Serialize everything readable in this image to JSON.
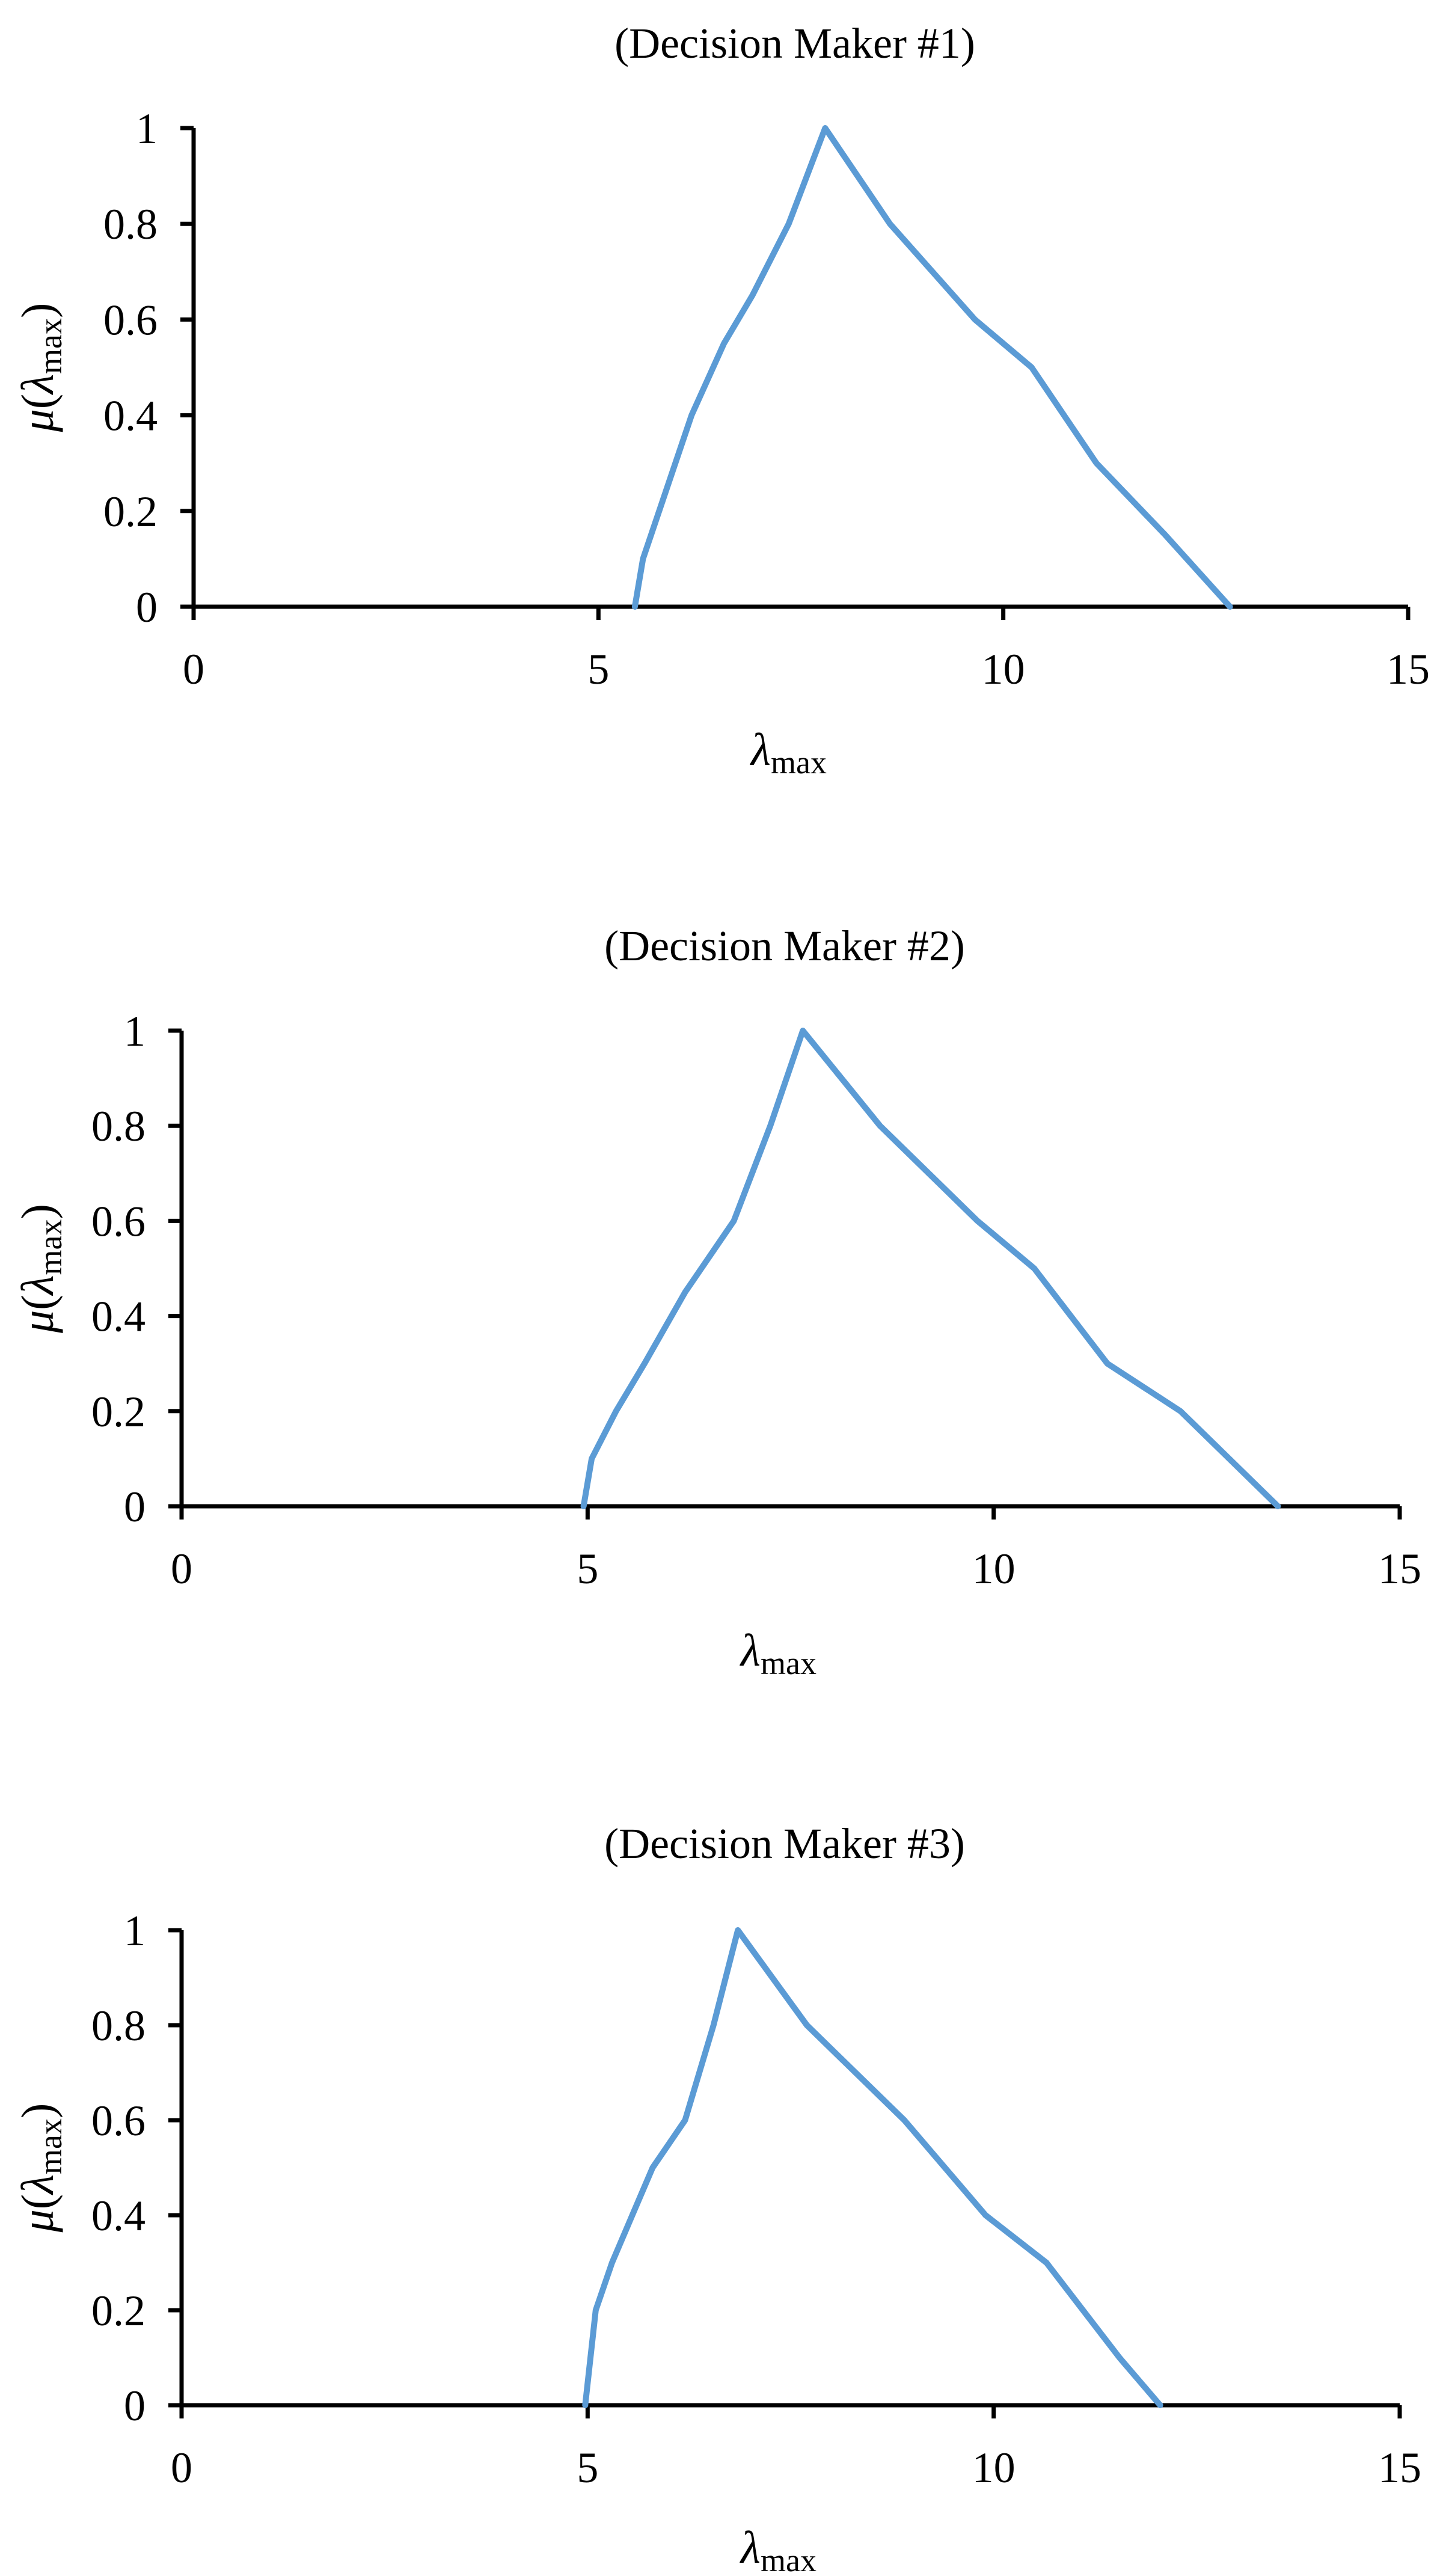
{
  "colors": {
    "series": "#5B9BD5",
    "axis": "#000000"
  },
  "chart_data": [
    {
      "type": "line",
      "title": "(Decision Maker #1)",
      "xlabel": "λmax",
      "ylabel": "μ(λmax)",
      "xlabel_parts": {
        "symbol": "λ",
        "sub": "max"
      },
      "ylabel_parts": {
        "mu": "μ",
        "open": "(",
        "symbol": "λ",
        "sub": "max",
        "close": ")"
      },
      "xlim": [
        0,
        15
      ],
      "ylim": [
        0,
        1
      ],
      "xticks": [
        "0",
        "5",
        "10",
        "15"
      ],
      "yticks": [
        "0",
        "0.2",
        "0.4",
        "0.6",
        "0.8",
        "1"
      ],
      "grid": false,
      "series": [
        {
          "x": [
            5.45,
            5.55,
            5.85,
            6.15,
            6.55,
            6.9,
            7.35,
            7.8,
            8.6,
            9.65,
            10.35,
            11.15,
            12.0,
            12.8
          ],
          "y": [
            0,
            0.1,
            0.25,
            0.4,
            0.55,
            0.65,
            0.8,
            1,
            0.8,
            0.6,
            0.5,
            0.3,
            0.15,
            0
          ]
        }
      ]
    },
    {
      "type": "line",
      "title": "(Decision Maker #2)",
      "xlabel": "λmax",
      "ylabel": "μ(λmax)",
      "xlabel_parts": {
        "symbol": "λ",
        "sub": "max"
      },
      "ylabel_parts": {
        "mu": "μ",
        "open": "(",
        "symbol": "λ",
        "sub": "max",
        "close": ")"
      },
      "xlim": [
        0,
        15
      ],
      "ylim": [
        0,
        1
      ],
      "xticks": [
        "0",
        "5",
        "10",
        "15"
      ],
      "yticks": [
        "0",
        "0.2",
        "0.4",
        "0.6",
        "0.8",
        "1"
      ],
      "grid": false,
      "series": [
        {
          "x": [
            4.95,
            5.05,
            5.35,
            5.7,
            6.2,
            6.8,
            7.25,
            7.65,
            8.6,
            9.8,
            10.5,
            11.4,
            12.3,
            12.9,
            13.5
          ],
          "y": [
            0,
            0.1,
            0.2,
            0.3,
            0.45,
            0.6,
            0.8,
            1,
            0.8,
            0.6,
            0.5,
            0.3,
            0.2,
            0.1,
            0
          ]
        }
      ]
    },
    {
      "type": "line",
      "title": "(Decision Maker #3)",
      "xlabel": "λmax",
      "ylabel": "μ(λmax)",
      "xlabel_parts": {
        "symbol": "λ",
        "sub": "max"
      },
      "ylabel_parts": {
        "mu": "μ",
        "open": "(",
        "symbol": "λ",
        "sub": "max",
        "close": ")"
      },
      "xlim": [
        0,
        15
      ],
      "ylim": [
        0,
        1
      ],
      "xticks": [
        "0",
        "5",
        "10",
        "15"
      ],
      "yticks": [
        "0",
        "0.2",
        "0.4",
        "0.6",
        "0.8",
        "1"
      ],
      "grid": false,
      "series": [
        {
          "x": [
            4.97,
            5.1,
            5.3,
            5.55,
            5.8,
            6.2,
            6.55,
            6.85,
            7.7,
            8.9,
            9.9,
            10.65,
            11.55,
            12.05
          ],
          "y": [
            0,
            0.2,
            0.3,
            0.4,
            0.5,
            0.6,
            0.8,
            1,
            0.8,
            0.6,
            0.4,
            0.3,
            0.1,
            0
          ]
        }
      ]
    }
  ]
}
